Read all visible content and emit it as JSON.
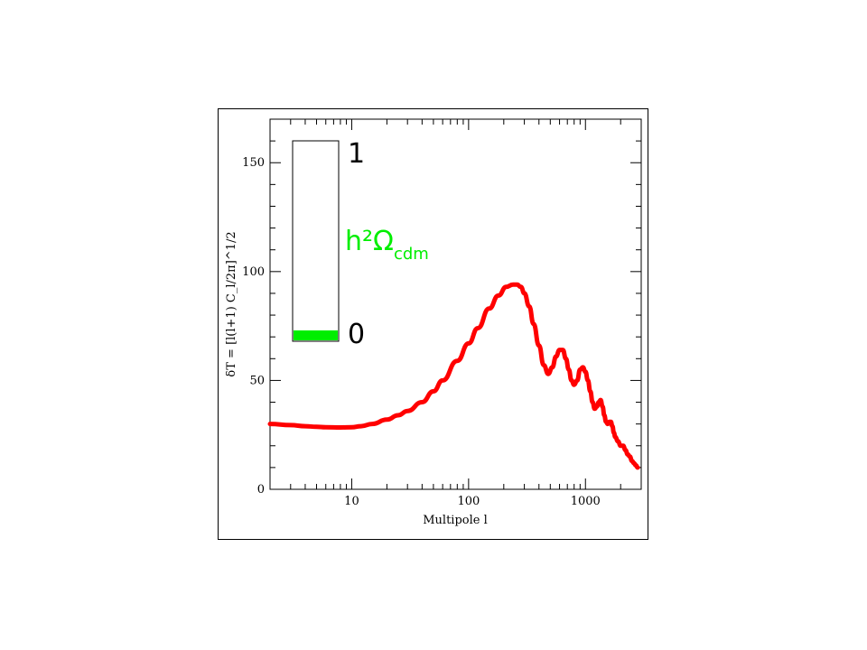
{
  "chart_data": {
    "type": "line",
    "xlabel": "Multipole l",
    "ylabel": "δT = [l(l+1) C_l/2π]^1/2",
    "xscale": "log",
    "xlim": [
      2,
      3000
    ],
    "ylim": [
      0,
      170
    ],
    "x_ticks": [
      10,
      100,
      1000
    ],
    "x_tick_labels": [
      "10",
      "100",
      "1000"
    ],
    "y_ticks": [
      0,
      50,
      100,
      150
    ],
    "y_tick_labels": [
      "0",
      "50",
      "100",
      "150"
    ],
    "grid": false,
    "series": [
      {
        "color": "#ff0000",
        "x": [
          2,
          3,
          4,
          5,
          6,
          8,
          10,
          12,
          15,
          20,
          25,
          30,
          40,
          50,
          60,
          80,
          100,
          120,
          150,
          180,
          210,
          240,
          260,
          280,
          300,
          330,
          360,
          400,
          440,
          480,
          520,
          560,
          600,
          640,
          680,
          720,
          760,
          800,
          850,
          900,
          950,
          1000,
          1050,
          1100,
          1150,
          1200,
          1250,
          1300,
          1350,
          1400,
          1450,
          1500,
          1550,
          1600,
          1650,
          1700,
          1750,
          1800,
          1900,
          2000,
          2100,
          2200,
          2300,
          2400,
          2500,
          2600,
          2700,
          2800
        ],
        "y": [
          30,
          29.5,
          29,
          28.7,
          28.5,
          28.4,
          28.5,
          29,
          30,
          32,
          34,
          36,
          40,
          45,
          50,
          59,
          67,
          74,
          83,
          89,
          93,
          94,
          94,
          93,
          90,
          84,
          76,
          66,
          57,
          53,
          56,
          61,
          64,
          64,
          60,
          55,
          50,
          48,
          50,
          55,
          56,
          54,
          50,
          45,
          40,
          37,
          38,
          40,
          41,
          38,
          34,
          31,
          30,
          31,
          31,
          29,
          26,
          24,
          22,
          20,
          20,
          18,
          16,
          15,
          13,
          12,
          11,
          10
        ]
      }
    ],
    "gauge": {
      "label_top": "1",
      "label_bottom": "0",
      "param_main": "h²Ω",
      "param_sub": "cdm",
      "param_color": "#00ee00",
      "fill_color": "#00ee00",
      "value": 0.05
    }
  }
}
